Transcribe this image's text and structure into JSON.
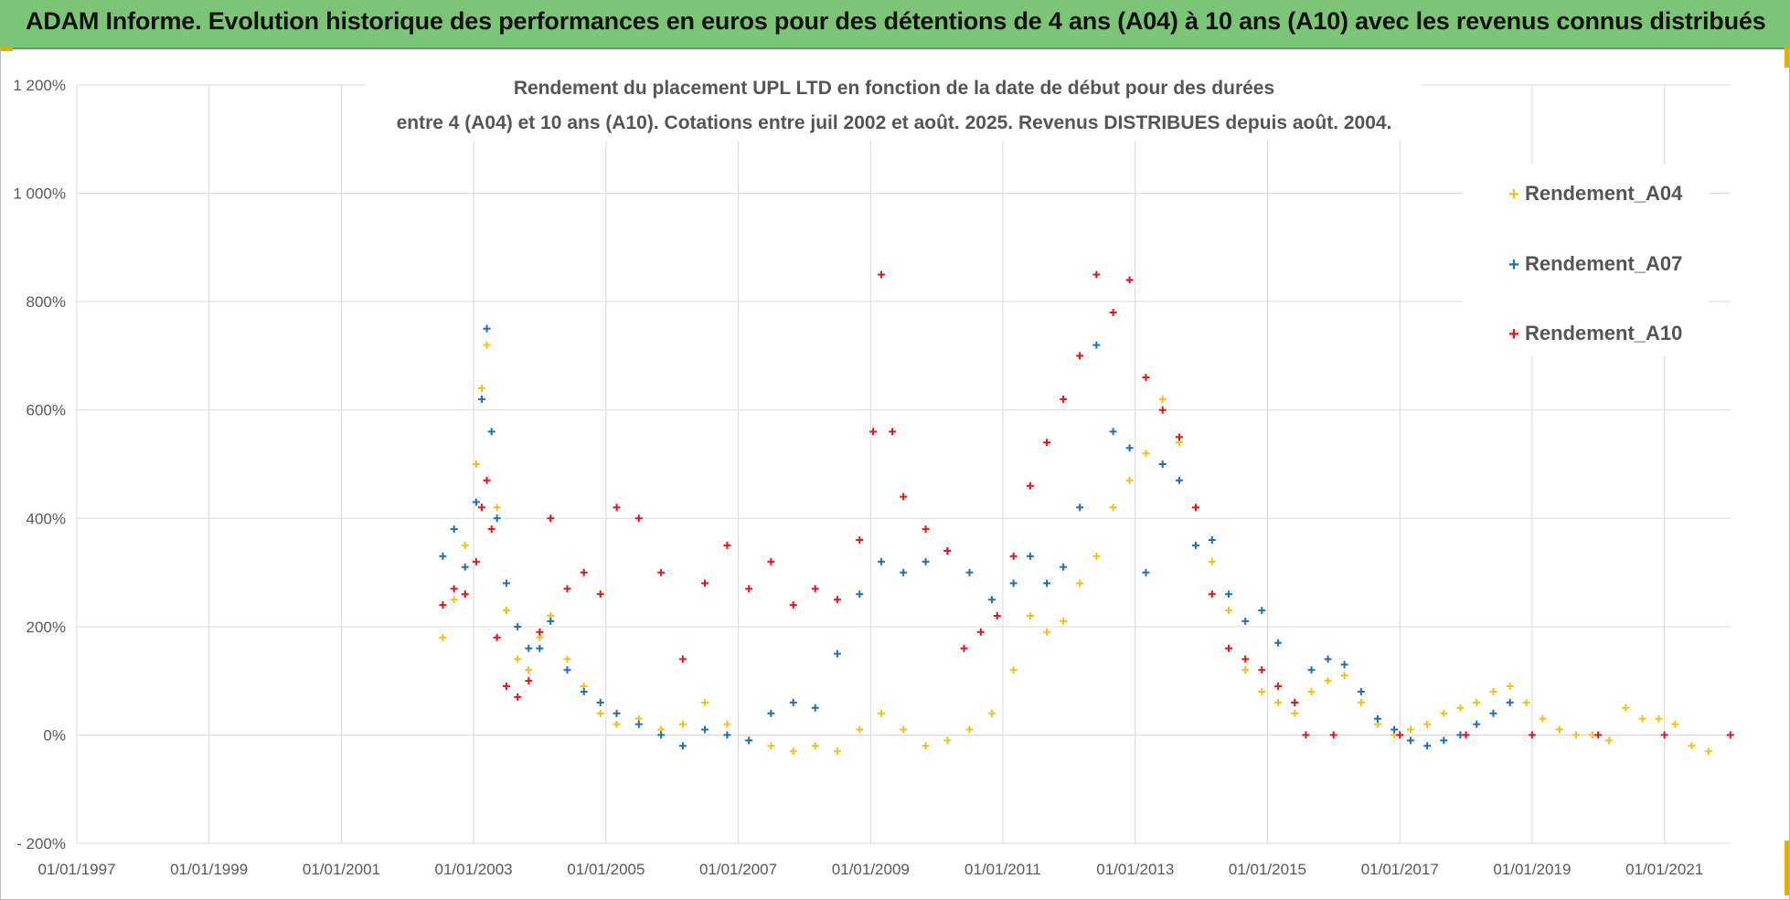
{
  "banner": {
    "title": "ADAM Informe. Evolution historique des performances en euros pour des détentions de 4 ans (A04) à 10 ans (A10) avec les revenus connus distribués"
  },
  "colors": {
    "banner_bg": "#7dc576",
    "A04": "#f5c014",
    "A07": "#1f6fb5",
    "A10": "#e8121a",
    "grid": "#d9d9d9"
  },
  "chart_data": {
    "type": "scatter",
    "title_line1": "Rendement du placement UPL LTD en fonction de la date de début pour des durées",
    "title_line2": "entre 4 (A04) et 10 ans (A10). Cotations entre juil 2002 et août. 2025. Revenus DISTRIBUES depuis août. 2004.",
    "xlim": [
      "1997-01-01",
      "2022-01-01"
    ],
    "ylim": [
      -200,
      1200
    ],
    "y_ticks": [
      -200,
      0,
      200,
      400,
      600,
      800,
      1000,
      1200
    ],
    "y_tick_labels": [
      "- 200%",
      "0%",
      "200%",
      "400%",
      "600%",
      "800%",
      "1 000%",
      "1 200%"
    ],
    "x_tick_labels": [
      "01/01/1997",
      "01/01/1999",
      "01/01/2001",
      "01/01/2003",
      "01/01/2005",
      "01/01/2007",
      "01/01/2009",
      "01/01/2011",
      "01/01/2013",
      "01/01/2015",
      "01/01/2017",
      "01/01/2019",
      "01/01/2021"
    ],
    "legend_position": "right",
    "grid": true,
    "series": [
      {
        "name": "Rendement_A04",
        "color": "#f5c014",
        "points": [
          [
            "2002-07-15",
            180
          ],
          [
            "2002-09-15",
            250
          ],
          [
            "2002-11-15",
            350
          ],
          [
            "2003-01-15",
            500
          ],
          [
            "2003-02-15",
            640
          ],
          [
            "2003-03-15",
            720
          ],
          [
            "2003-04-10",
            560
          ],
          [
            "2003-05-10",
            420
          ],
          [
            "2003-07-01",
            230
          ],
          [
            "2003-09-01",
            140
          ],
          [
            "2003-11-01",
            120
          ],
          [
            "2004-01-01",
            180
          ],
          [
            "2004-03-01",
            220
          ],
          [
            "2004-06-01",
            140
          ],
          [
            "2004-09-01",
            90
          ],
          [
            "2004-12-01",
            40
          ],
          [
            "2005-03-01",
            20
          ],
          [
            "2005-07-01",
            30
          ],
          [
            "2005-11-01",
            10
          ],
          [
            "2006-03-01",
            20
          ],
          [
            "2006-07-01",
            60
          ],
          [
            "2006-11-01",
            20
          ],
          [
            "2007-03-01",
            -10
          ],
          [
            "2007-07-01",
            -20
          ],
          [
            "2007-11-01",
            -30
          ],
          [
            "2008-03-01",
            -20
          ],
          [
            "2008-07-01",
            -30
          ],
          [
            "2008-11-01",
            10
          ],
          [
            "2009-03-01",
            40
          ],
          [
            "2009-07-01",
            10
          ],
          [
            "2009-11-01",
            -20
          ],
          [
            "2010-03-01",
            -10
          ],
          [
            "2010-07-01",
            10
          ],
          [
            "2010-11-01",
            40
          ],
          [
            "2011-03-01",
            120
          ],
          [
            "2011-06-01",
            220
          ],
          [
            "2011-09-01",
            190
          ],
          [
            "2011-12-01",
            210
          ],
          [
            "2012-03-01",
            280
          ],
          [
            "2012-06-01",
            330
          ],
          [
            "2012-09-01",
            420
          ],
          [
            "2012-12-01",
            470
          ],
          [
            "2013-03-01",
            520
          ],
          [
            "2013-06-01",
            620
          ],
          [
            "2013-09-01",
            540
          ],
          [
            "2013-12-01",
            420
          ],
          [
            "2014-03-01",
            320
          ],
          [
            "2014-06-01",
            230
          ],
          [
            "2014-09-01",
            120
          ],
          [
            "2014-12-01",
            80
          ],
          [
            "2015-03-01",
            60
          ],
          [
            "2015-06-01",
            40
          ],
          [
            "2015-09-01",
            80
          ],
          [
            "2015-12-01",
            100
          ],
          [
            "2016-03-01",
            110
          ],
          [
            "2016-06-01",
            60
          ],
          [
            "2016-09-01",
            20
          ],
          [
            "2016-12-01",
            0
          ],
          [
            "2017-03-01",
            10
          ],
          [
            "2017-06-01",
            20
          ],
          [
            "2017-09-01",
            40
          ],
          [
            "2017-12-01",
            50
          ],
          [
            "2018-03-01",
            60
          ],
          [
            "2018-06-01",
            80
          ],
          [
            "2018-09-01",
            90
          ],
          [
            "2018-12-01",
            60
          ],
          [
            "2019-03-01",
            30
          ],
          [
            "2019-06-01",
            10
          ],
          [
            "2019-09-01",
            0
          ],
          [
            "2019-12-01",
            0
          ],
          [
            "2020-03-01",
            -10
          ],
          [
            "2020-06-01",
            50
          ],
          [
            "2020-09-01",
            30
          ],
          [
            "2020-12-01",
            30
          ],
          [
            "2021-03-01",
            20
          ],
          [
            "2021-06-01",
            -20
          ],
          [
            "2021-09-01",
            -30
          ]
        ]
      },
      {
        "name": "Rendement_A07",
        "color": "#1f6fb5",
        "points": [
          [
            "2002-07-15",
            330
          ],
          [
            "2002-09-15",
            380
          ],
          [
            "2002-11-15",
            310
          ],
          [
            "2003-01-15",
            430
          ],
          [
            "2003-02-15",
            620
          ],
          [
            "2003-03-15",
            750
          ],
          [
            "2003-04-10",
            560
          ],
          [
            "2003-05-10",
            400
          ],
          [
            "2003-07-01",
            280
          ],
          [
            "2003-09-01",
            200
          ],
          [
            "2003-11-01",
            160
          ],
          [
            "2004-01-01",
            160
          ],
          [
            "2004-03-01",
            210
          ],
          [
            "2004-06-01",
            120
          ],
          [
            "2004-09-01",
            80
          ],
          [
            "2004-12-01",
            60
          ],
          [
            "2005-03-01",
            40
          ],
          [
            "2005-07-01",
            20
          ],
          [
            "2005-11-01",
            0
          ],
          [
            "2006-03-01",
            -20
          ],
          [
            "2006-07-01",
            10
          ],
          [
            "2006-11-01",
            0
          ],
          [
            "2007-03-01",
            -10
          ],
          [
            "2007-07-01",
            40
          ],
          [
            "2007-11-01",
            60
          ],
          [
            "2008-03-01",
            50
          ],
          [
            "2008-07-01",
            150
          ],
          [
            "2008-11-01",
            260
          ],
          [
            "2009-03-01",
            320
          ],
          [
            "2009-07-01",
            300
          ],
          [
            "2009-11-01",
            320
          ],
          [
            "2010-03-01",
            340
          ],
          [
            "2010-07-01",
            300
          ],
          [
            "2010-11-01",
            250
          ],
          [
            "2011-03-01",
            280
          ],
          [
            "2011-06-01",
            330
          ],
          [
            "2011-09-01",
            280
          ],
          [
            "2011-12-01",
            310
          ],
          [
            "2012-03-01",
            420
          ],
          [
            "2012-06-01",
            720
          ],
          [
            "2012-09-01",
            560
          ],
          [
            "2012-12-01",
            530
          ],
          [
            "2013-03-01",
            300
          ],
          [
            "2013-06-01",
            500
          ],
          [
            "2013-09-01",
            470
          ],
          [
            "2013-12-01",
            350
          ],
          [
            "2014-03-01",
            360
          ],
          [
            "2014-06-01",
            260
          ],
          [
            "2014-09-01",
            210
          ],
          [
            "2014-12-01",
            230
          ],
          [
            "2015-03-01",
            170
          ],
          [
            "2015-06-01",
            60
          ],
          [
            "2015-09-01",
            120
          ],
          [
            "2015-12-01",
            140
          ],
          [
            "2016-03-01",
            130
          ],
          [
            "2016-06-01",
            80
          ],
          [
            "2016-09-01",
            30
          ],
          [
            "2016-12-01",
            10
          ],
          [
            "2017-03-01",
            -10
          ],
          [
            "2017-06-01",
            -20
          ],
          [
            "2017-09-01",
            -10
          ],
          [
            "2017-12-01",
            0
          ],
          [
            "2018-03-01",
            20
          ],
          [
            "2018-06-01",
            40
          ],
          [
            "2018-09-01",
            60
          ]
        ]
      },
      {
        "name": "Rendement_A10",
        "color": "#e8121a",
        "points": [
          [
            "2002-07-15",
            240
          ],
          [
            "2002-09-15",
            270
          ],
          [
            "2002-11-15",
            260
          ],
          [
            "2003-01-15",
            320
          ],
          [
            "2003-02-15",
            420
          ],
          [
            "2003-03-15",
            470
          ],
          [
            "2003-04-10",
            380
          ],
          [
            "2003-05-10",
            180
          ],
          [
            "2003-07-01",
            90
          ],
          [
            "2003-09-01",
            70
          ],
          [
            "2003-11-01",
            100
          ],
          [
            "2004-01-01",
            190
          ],
          [
            "2004-03-01",
            400
          ],
          [
            "2004-06-01",
            270
          ],
          [
            "2004-09-01",
            300
          ],
          [
            "2004-12-01",
            260
          ],
          [
            "2005-03-01",
            420
          ],
          [
            "2005-07-01",
            400
          ],
          [
            "2005-11-01",
            300
          ],
          [
            "2006-03-01",
            140
          ],
          [
            "2006-07-01",
            280
          ],
          [
            "2006-11-01",
            350
          ],
          [
            "2007-03-01",
            270
          ],
          [
            "2007-07-01",
            320
          ],
          [
            "2007-11-01",
            240
          ],
          [
            "2008-03-01",
            270
          ],
          [
            "2008-07-01",
            250
          ],
          [
            "2008-11-01",
            360
          ],
          [
            "2009-01-15",
            560
          ],
          [
            "2009-03-01",
            850
          ],
          [
            "2009-05-01",
            560
          ],
          [
            "2009-07-01",
            440
          ],
          [
            "2009-11-01",
            380
          ],
          [
            "2010-03-01",
            340
          ],
          [
            "2010-06-01",
            160
          ],
          [
            "2010-09-01",
            190
          ],
          [
            "2010-12-01",
            220
          ],
          [
            "2011-03-01",
            330
          ],
          [
            "2011-06-01",
            460
          ],
          [
            "2011-09-01",
            540
          ],
          [
            "2011-12-01",
            620
          ],
          [
            "2012-03-01",
            700
          ],
          [
            "2012-06-01",
            850
          ],
          [
            "2012-09-01",
            780
          ],
          [
            "2012-12-01",
            840
          ],
          [
            "2013-03-01",
            660
          ],
          [
            "2013-06-01",
            600
          ],
          [
            "2013-09-01",
            550
          ],
          [
            "2013-12-01",
            420
          ],
          [
            "2014-03-01",
            260
          ],
          [
            "2014-06-01",
            160
          ],
          [
            "2014-09-01",
            140
          ],
          [
            "2014-12-01",
            120
          ],
          [
            "2015-03-01",
            90
          ],
          [
            "2015-06-01",
            60
          ],
          [
            "2015-08-01",
            0
          ],
          [
            "2016-01-01",
            0
          ],
          [
            "2017-01-01",
            0
          ],
          [
            "2018-01-01",
            0
          ],
          [
            "2019-01-01",
            0
          ],
          [
            "2020-01-01",
            0
          ],
          [
            "2021-01-01",
            0
          ],
          [
            "2021-12-31",
            0
          ]
        ]
      }
    ]
  }
}
